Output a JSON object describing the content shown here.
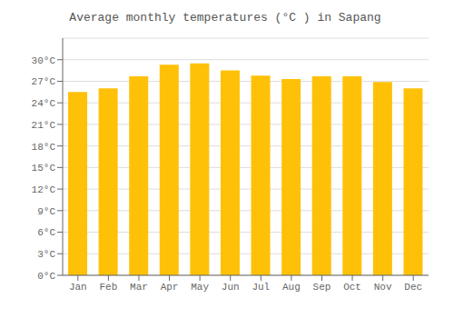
{
  "chart_data": {
    "type": "bar",
    "title": "Average monthly temperatures (°C ) in Sapang",
    "categories": [
      "Jan",
      "Feb",
      "Mar",
      "Apr",
      "May",
      "Jun",
      "Jul",
      "Aug",
      "Sep",
      "Oct",
      "Nov",
      "Dec"
    ],
    "values": [
      25.5,
      26.0,
      27.7,
      29.3,
      29.5,
      28.5,
      27.8,
      27.3,
      27.7,
      27.7,
      26.9,
      26.0
    ],
    "color": "#FFC107",
    "ylim": [
      0,
      33
    ],
    "yticks": [
      {
        "value": 0,
        "label": "0°C"
      },
      {
        "value": 3,
        "label": "3°C"
      },
      {
        "value": 6,
        "label": "6°C"
      },
      {
        "value": 9,
        "label": "9°C"
      },
      {
        "value": 12,
        "label": "12°C"
      },
      {
        "value": 15,
        "label": "15°C"
      },
      {
        "value": 18,
        "label": "18°C"
      },
      {
        "value": 21,
        "label": "21°C"
      },
      {
        "value": 24,
        "label": "24°C"
      },
      {
        "value": 27,
        "label": "27°C"
      },
      {
        "value": 30,
        "label": "30°C"
      }
    ],
    "grid": true
  }
}
